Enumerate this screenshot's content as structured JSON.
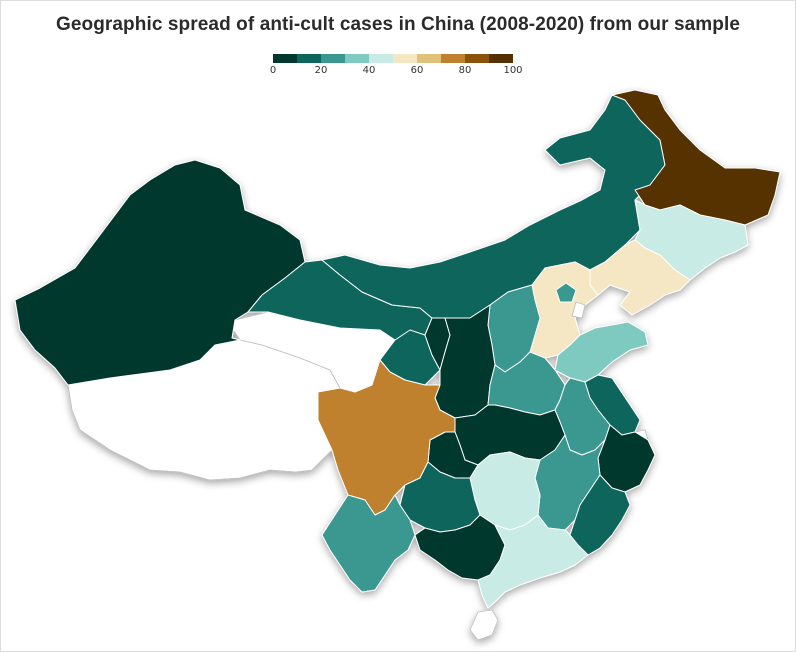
{
  "map": {
    "title": "Geographic spread of anti-cult cases in China (2008-2020) from our sample",
    "legend": {
      "ticks": [
        "0",
        "20",
        "40",
        "60",
        "80",
        "100"
      ],
      "tick_values": [
        0,
        20,
        40,
        60,
        80,
        100
      ],
      "colors": [
        "#00382f",
        "#0d655c",
        "#3a9890",
        "#7ecac0",
        "#c8ebe5",
        "#f5e7c3",
        "#dfc17a",
        "#bf812d",
        "#8c520a",
        "#543005"
      ]
    },
    "regions": [
      {
        "name": "Xinjiang",
        "value": 5
      },
      {
        "name": "Tibet",
        "value": null
      },
      {
        "name": "Qinghai",
        "value": null
      },
      {
        "name": "Gansu",
        "value": 15
      },
      {
        "name": "Inner Mongolia",
        "value": 15
      },
      {
        "name": "Heilongjiang",
        "value": 95
      },
      {
        "name": "Jilin",
        "value": 45
      },
      {
        "name": "Liaoning",
        "value": 55
      },
      {
        "name": "Beijing",
        "value": 25
      },
      {
        "name": "Tianjin",
        "value": null
      },
      {
        "name": "Hebei",
        "value": 55
      },
      {
        "name": "Shanxi",
        "value": 25
      },
      {
        "name": "Shandong",
        "value": 35
      },
      {
        "name": "Ningxia",
        "value": 5
      },
      {
        "name": "Shaanxi",
        "value": 5
      },
      {
        "name": "Henan",
        "value": 25
      },
      {
        "name": "Jiangsu",
        "value": 15
      },
      {
        "name": "Anhui",
        "value": 25
      },
      {
        "name": "Hubei",
        "value": 5
      },
      {
        "name": "Sichuan",
        "value": 75
      },
      {
        "name": "Chongqing",
        "value": 5
      },
      {
        "name": "Zhejiang",
        "value": 5
      },
      {
        "name": "Shanghai",
        "value": null
      },
      {
        "name": "Hunan",
        "value": 45
      },
      {
        "name": "Jiangxi",
        "value": 25
      },
      {
        "name": "Fujian",
        "value": 15
      },
      {
        "name": "Guizhou",
        "value": 15
      },
      {
        "name": "Yunnan",
        "value": 25
      },
      {
        "name": "Guangxi",
        "value": 5
      },
      {
        "name": "Guangdong",
        "value": 45
      },
      {
        "name": "Hainan",
        "value": null
      }
    ]
  }
}
